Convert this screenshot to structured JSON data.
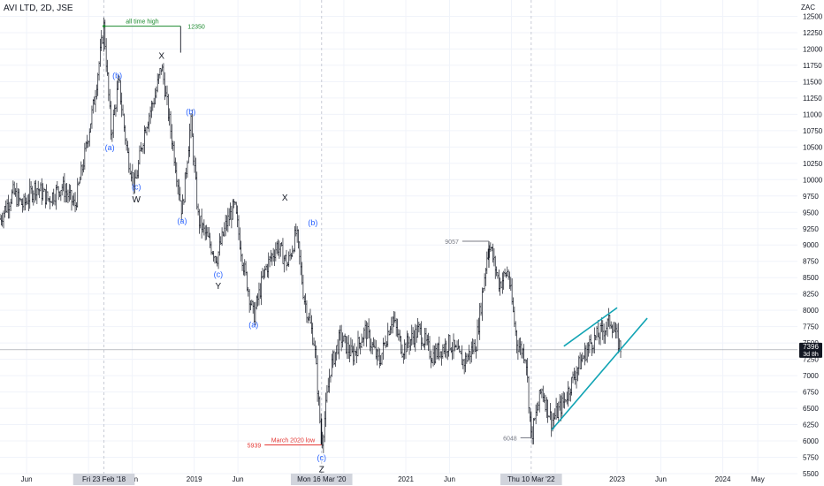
{
  "header": {
    "symbol": "AVI LTD, 2D, JSE",
    "currency": "ZAC"
  },
  "price_badge": {
    "value": "7396",
    "timer": "3d 8h"
  },
  "crosshair_labels": [
    {
      "text": "Fri 23 Feb '18",
      "date": "2018-02-23"
    },
    {
      "text": "Mon 16 Mar '20",
      "date": "2020-03-16"
    },
    {
      "text": "Thu 10 Mar '22",
      "date": "2022-03-10"
    }
  ],
  "chart_data": {
    "type": "bar",
    "title": "AVI LTD, 2D, JSE",
    "xlabel": "",
    "ylabel": "ZAC",
    "ylim": [
      5500,
      12750
    ],
    "xlim": [
      "2017-03-01",
      "2024-09-15"
    ],
    "grid": true,
    "y_ticks": [
      5500,
      5750,
      6000,
      6250,
      6500,
      6750,
      7000,
      7250,
      7500,
      7750,
      8000,
      8250,
      8500,
      8750,
      9000,
      9250,
      9500,
      9750,
      10000,
      10250,
      10500,
      10750,
      11000,
      11250,
      11500,
      11750,
      12000,
      12250,
      12500
    ],
    "x_ticks": [
      {
        "label": "Jun",
        "date": "2017-06-01"
      },
      {
        "label": "2",
        "date": "2018-01-01"
      },
      {
        "label": "Jun",
        "date": "2018-06-01"
      },
      {
        "label": "2019",
        "date": "2019-01-01"
      },
      {
        "label": "Jun",
        "date": "2019-06-01"
      },
      {
        "label": "20",
        "date": "2020-01-01"
      },
      {
        "label": "Jun",
        "date": "2020-06-01"
      },
      {
        "label": "2021",
        "date": "2021-01-01"
      },
      {
        "label": "Jun",
        "date": "2021-06-01"
      },
      {
        "label": "20",
        "date": "2022-01-01"
      },
      {
        "label": "Jun",
        "date": "2022-06-01"
      },
      {
        "label": "2023",
        "date": "2023-01-01"
      },
      {
        "label": "Jun",
        "date": "2023-06-01"
      },
      {
        "label": "2024",
        "date": "2024-01-01"
      },
      {
        "label": "May",
        "date": "2024-05-01"
      }
    ],
    "series": [
      {
        "path": [
          [
            "2017-03-01",
            9400
          ],
          [
            "2017-04-15",
            9800
          ],
          [
            "2017-05-20",
            9600
          ],
          [
            "2017-07-01",
            9900
          ],
          [
            "2017-08-15",
            9700
          ],
          [
            "2017-10-01",
            9900
          ],
          [
            "2017-11-15",
            9600
          ],
          [
            "2017-12-20",
            10400
          ],
          [
            "2018-01-20",
            11200
          ],
          [
            "2018-02-23",
            12350
          ],
          [
            "2018-03-20",
            10700
          ],
          [
            "2018-04-15",
            11500
          ],
          [
            "2018-05-15",
            10400
          ],
          [
            "2018-06-10",
            9900
          ],
          [
            "2018-07-15",
            10800
          ],
          [
            "2018-08-20",
            11300
          ],
          [
            "2018-09-10",
            11750
          ],
          [
            "2018-10-20",
            10500
          ],
          [
            "2018-11-20",
            9500
          ],
          [
            "2018-12-20",
            10900
          ],
          [
            "2019-01-15",
            9400
          ],
          [
            "2019-02-15",
            9100
          ],
          [
            "2019-03-20",
            8800
          ],
          [
            "2019-04-20",
            9300
          ],
          [
            "2019-05-20",
            9600
          ],
          [
            "2019-06-20",
            8700
          ],
          [
            "2019-07-25",
            7900
          ],
          [
            "2019-09-01",
            8600
          ],
          [
            "2019-10-15",
            9000
          ],
          [
            "2019-11-20",
            8700
          ],
          [
            "2019-12-20",
            9200
          ],
          [
            "2020-01-15",
            8200
          ],
          [
            "2020-02-20",
            7500
          ],
          [
            "2020-03-16",
            5939
          ],
          [
            "2020-04-15",
            7100
          ],
          [
            "2020-05-20",
            7600
          ],
          [
            "2020-07-01",
            7300
          ],
          [
            "2020-08-15",
            7700
          ],
          [
            "2020-10-01",
            7200
          ],
          [
            "2020-11-15",
            7900
          ],
          [
            "2020-12-20",
            7400
          ],
          [
            "2021-02-15",
            7700
          ],
          [
            "2021-04-01",
            7300
          ],
          [
            "2021-06-01",
            7500
          ],
          [
            "2021-07-20",
            7200
          ],
          [
            "2021-09-01",
            7500
          ],
          [
            "2021-10-15",
            9057
          ],
          [
            "2021-11-20",
            8400
          ],
          [
            "2021-12-20",
            8600
          ],
          [
            "2022-01-20",
            7500
          ],
          [
            "2022-02-20",
            7300
          ],
          [
            "2022-03-10",
            6048
          ],
          [
            "2022-04-15",
            6800
          ],
          [
            "2022-05-20",
            6300
          ],
          [
            "2022-07-01",
            6600
          ],
          [
            "2022-08-15",
            7100
          ],
          [
            "2022-10-01",
            7500
          ],
          [
            "2022-11-15",
            7700
          ],
          [
            "2022-12-10",
            7850
          ],
          [
            "2023-01-01",
            7550
          ],
          [
            "2023-01-15",
            7396
          ]
        ]
      }
    ],
    "levels": [
      {
        "label": "all time high",
        "value": 12350,
        "value_text": "12350",
        "from": "2018-02-23",
        "to": "2018-11-15",
        "color": "#1b8a2e"
      },
      {
        "label": "March 2020 low",
        "value": 5939,
        "value_text": "5939",
        "from": "2019-09-01",
        "to": "2020-03-16",
        "color": "#e53935"
      },
      {
        "label": "",
        "value": 9057,
        "value_text": "9057",
        "from": "2021-07-15",
        "to": "2021-10-15",
        "color": "#787b86"
      },
      {
        "label": "",
        "value": 6048,
        "value_text": "6048",
        "from": "2022-02-01",
        "to": "2022-03-10",
        "color": "#787b86"
      }
    ],
    "current_price_line": 7396,
    "trend_lines": [
      {
        "from": [
          "2022-05-20",
          6170
        ],
        "to": [
          "2023-04-15",
          7880
        ],
        "color": "#12a4b4"
      },
      {
        "from": [
          "2022-07-01",
          7450
        ],
        "to": [
          "2023-01-01",
          8040
        ],
        "color": "#12a4b4"
      }
    ],
    "wave_labels": [
      {
        "text": "(b)",
        "date": "2018-04-10",
        "value": 11550,
        "style": "blue"
      },
      {
        "text": "(a)",
        "date": "2018-03-15",
        "value": 10450,
        "style": "blue"
      },
      {
        "text": "(c)",
        "date": "2018-06-15",
        "value": 9850,
        "style": "blue"
      },
      {
        "text": "W",
        "date": "2018-06-15",
        "value": 9650,
        "style": "black"
      },
      {
        "text": "X",
        "date": "2018-09-10",
        "value": 11850,
        "style": "black"
      },
      {
        "text": "(b)",
        "date": "2018-12-20",
        "value": 11000,
        "style": "blue"
      },
      {
        "text": "(a)",
        "date": "2018-11-20",
        "value": 9330,
        "style": "blue"
      },
      {
        "text": "(c)",
        "date": "2019-03-25",
        "value": 8510,
        "style": "blue"
      },
      {
        "text": "Y",
        "date": "2019-03-25",
        "value": 8330,
        "style": "black"
      },
      {
        "text": "X",
        "date": "2019-11-10",
        "value": 9680,
        "style": "black"
      },
      {
        "text": "(a)",
        "date": "2019-07-25",
        "value": 7740,
        "style": "blue"
      },
      {
        "text": "(b)",
        "date": "2020-02-15",
        "value": 9300,
        "style": "blue"
      },
      {
        "text": "(c)",
        "date": "2020-03-16",
        "value": 5700,
        "style": "blue"
      },
      {
        "text": "Z",
        "date": "2020-03-16",
        "value": 5520,
        "style": "black"
      }
    ]
  }
}
